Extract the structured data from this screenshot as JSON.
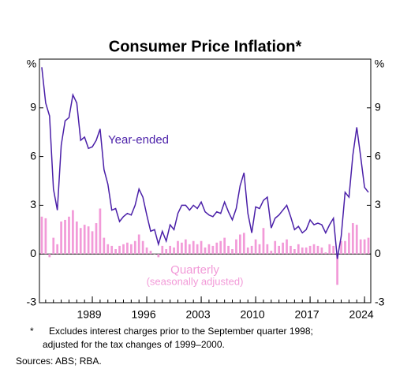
{
  "chart_data": {
    "type": "combo",
    "title": "Consumer Price Inflation*",
    "y_label": "%",
    "xlim": [
      1982.2,
      2024.8
    ],
    "xticks": [
      1989,
      1996,
      2003,
      2010,
      2017,
      2024
    ],
    "ylim": [
      -3,
      12
    ],
    "yticks": [
      -3,
      0,
      3,
      6,
      9
    ],
    "x": [
      1982.5,
      1983,
      1983.5,
      1984,
      1984.5,
      1985,
      1985.5,
      1986,
      1986.5,
      1987,
      1987.5,
      1988,
      1988.5,
      1989,
      1989.5,
      1990,
      1990.5,
      1991,
      1991.5,
      1992,
      1992.5,
      1993,
      1993.5,
      1994,
      1994.5,
      1995,
      1995.5,
      1996,
      1996.5,
      1997,
      1997.5,
      1998,
      1998.5,
      1999,
      1999.5,
      2000,
      2000.5,
      2001,
      2001.5,
      2002,
      2002.5,
      2003,
      2003.5,
      2004,
      2004.5,
      2005,
      2005.5,
      2006,
      2006.5,
      2007,
      2007.5,
      2008,
      2008.5,
      2009,
      2009.5,
      2010,
      2010.5,
      2011,
      2011.5,
      2012,
      2012.5,
      2013,
      2013.5,
      2014,
      2014.5,
      2015,
      2015.5,
      2016,
      2016.5,
      2017,
      2017.5,
      2018,
      2018.5,
      2019,
      2019.5,
      2020,
      2020.5,
      2021,
      2021.5,
      2022,
      2022.5,
      2023,
      2023.5,
      2024,
      2024.5
    ],
    "series": [
      {
        "name": "Quarterly",
        "type": "bar",
        "color": "#f29ad8",
        "values": [
          2.3,
          2.2,
          -0.2,
          1.0,
          0.6,
          2.0,
          2.1,
          2.3,
          2.7,
          2.0,
          1.6,
          1.8,
          1.7,
          1.4,
          1.9,
          2.8,
          1.0,
          0.6,
          0.5,
          0.3,
          0.5,
          0.6,
          0.7,
          0.6,
          0.8,
          1.2,
          0.8,
          0.4,
          0.2,
          0.0,
          -0.2,
          0.5,
          0.3,
          0.5,
          0.4,
          0.8,
          0.7,
          0.9,
          0.6,
          0.8,
          0.6,
          0.8,
          0.4,
          0.6,
          0.5,
          0.7,
          0.8,
          1.0,
          0.5,
          0.3,
          0.9,
          1.2,
          1.3,
          0.4,
          0.5,
          0.9,
          0.6,
          1.6,
          0.6,
          0.2,
          0.8,
          0.5,
          0.7,
          0.9,
          0.5,
          0.3,
          0.6,
          0.4,
          0.4,
          0.5,
          0.6,
          0.5,
          0.4,
          0.1,
          0.6,
          0.5,
          -1.9,
          0.8,
          0.8,
          1.3,
          1.9,
          1.8,
          0.9,
          0.9,
          1.0
        ]
      },
      {
        "name": "Year-ended",
        "type": "line",
        "color": "#4a1fa8",
        "values": [
          11.5,
          9.3,
          8.5,
          4.0,
          2.7,
          6.7,
          8.2,
          8.4,
          9.8,
          9.3,
          7.0,
          7.2,
          6.5,
          6.6,
          7.0,
          7.7,
          5.2,
          4.3,
          2.7,
          2.8,
          2.0,
          2.3,
          2.5,
          2.4,
          3.0,
          4.0,
          3.5,
          2.4,
          1.4,
          1.5,
          0.6,
          1.4,
          0.8,
          1.8,
          1.5,
          2.5,
          3.0,
          3.0,
          2.7,
          3.0,
          2.8,
          3.2,
          2.6,
          2.4,
          2.3,
          2.6,
          2.5,
          3.2,
          2.6,
          2.1,
          2.8,
          4.2,
          5.0,
          2.5,
          1.3,
          2.9,
          2.8,
          3.3,
          3.5,
          1.6,
          2.2,
          2.4,
          2.7,
          3.0,
          2.3,
          1.5,
          1.7,
          1.3,
          1.5,
          2.1,
          1.8,
          1.9,
          1.8,
          1.3,
          1.8,
          2.2,
          -0.3,
          1.1,
          3.8,
          3.5,
          6.1,
          7.8,
          6.0,
          4.1,
          3.8
        ]
      }
    ],
    "annotations": [
      "Year-ended",
      "Quarterly",
      "(seasonally adjusted)"
    ]
  },
  "notes": [
    "*",
    "Excludes interest charges prior to the September quarter 1998;",
    "adjusted for the tax changes of 1999–2000."
  ],
  "sources": "Sources: ABS; RBA."
}
